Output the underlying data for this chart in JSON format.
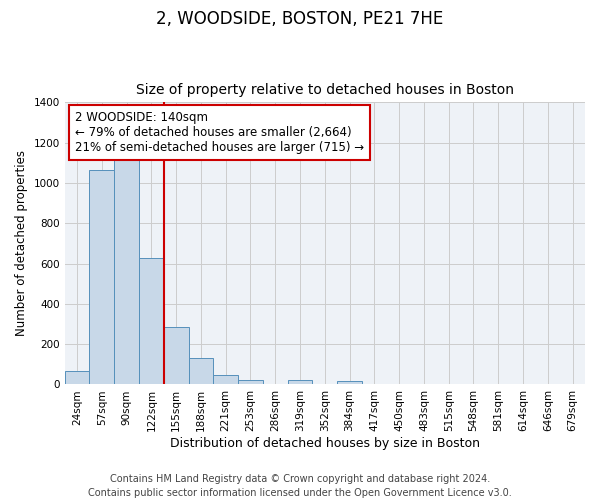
{
  "title": "2, WOODSIDE, BOSTON, PE21 7HE",
  "subtitle": "Size of property relative to detached houses in Boston",
  "xlabel": "Distribution of detached houses by size in Boston",
  "ylabel": "Number of detached properties",
  "bar_labels": [
    "24sqm",
    "57sqm",
    "90sqm",
    "122sqm",
    "155sqm",
    "188sqm",
    "221sqm",
    "253sqm",
    "286sqm",
    "319sqm",
    "352sqm",
    "384sqm",
    "417sqm",
    "450sqm",
    "483sqm",
    "515sqm",
    "548sqm",
    "581sqm",
    "614sqm",
    "646sqm",
    "679sqm"
  ],
  "bar_values": [
    65,
    1065,
    1155,
    630,
    285,
    130,
    45,
    20,
    0,
    20,
    0,
    15,
    0,
    0,
    0,
    0,
    0,
    0,
    0,
    0,
    0
  ],
  "bar_color": "#c8d8e8",
  "bar_edge_color": "#5590bb",
  "vline_index": 3,
  "vline_color": "#cc0000",
  "annotation_line1": "2 WOODSIDE: 140sqm",
  "annotation_line2": "← 79% of detached houses are smaller (2,664)",
  "annotation_line3": "21% of semi-detached houses are larger (715) →",
  "annotation_box_color": "#ffffff",
  "annotation_box_edge": "#cc0000",
  "ylim": [
    0,
    1400
  ],
  "yticks": [
    0,
    200,
    400,
    600,
    800,
    1000,
    1200,
    1400
  ],
  "grid_color": "#cccccc",
  "bg_color": "#eef2f7",
  "footer_text": "Contains HM Land Registry data © Crown copyright and database right 2024.\nContains public sector information licensed under the Open Government Licence v3.0.",
  "title_fontsize": 12,
  "subtitle_fontsize": 10,
  "xlabel_fontsize": 9,
  "ylabel_fontsize": 8.5,
  "tick_fontsize": 7.5,
  "annotation_fontsize": 8.5,
  "footer_fontsize": 7
}
